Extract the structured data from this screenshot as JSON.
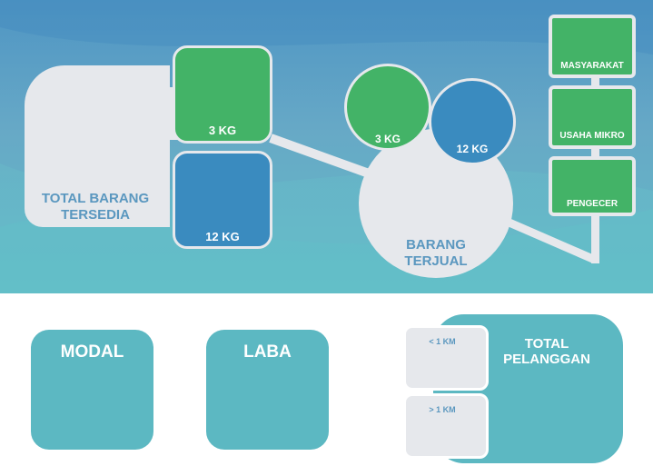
{
  "stock": {
    "total_label_line1": "TOTAL BARANG",
    "total_label_line2": "TERSEDIA",
    "green_card_value": "3 KG",
    "blue_card_value": "12 KG"
  },
  "sold": {
    "label_line1": "BARANG",
    "label_line2": "TERJUAL",
    "green_circle_value": "3 KG",
    "blue_circle_value": "12 KG"
  },
  "customers": {
    "items": [
      {
        "label": "MASYARAKAT"
      },
      {
        "label": "USAHA MIKRO"
      },
      {
        "label": "PENGECER"
      }
    ]
  },
  "bottom": {
    "modal_label": "MODAL",
    "laba_label": "LABA",
    "total_pelanggan_line1": "TOTAL",
    "total_pelanggan_line2": "PELANGGAN",
    "distance_under": "< 1 KM",
    "distance_over": "> 1 KM"
  },
  "colors": {
    "green": "#43b367",
    "blue": "#3a8bbf",
    "light_gray": "#e6e8ec",
    "teal": "#5cb8c2",
    "text_blue": "#5a97bf"
  }
}
